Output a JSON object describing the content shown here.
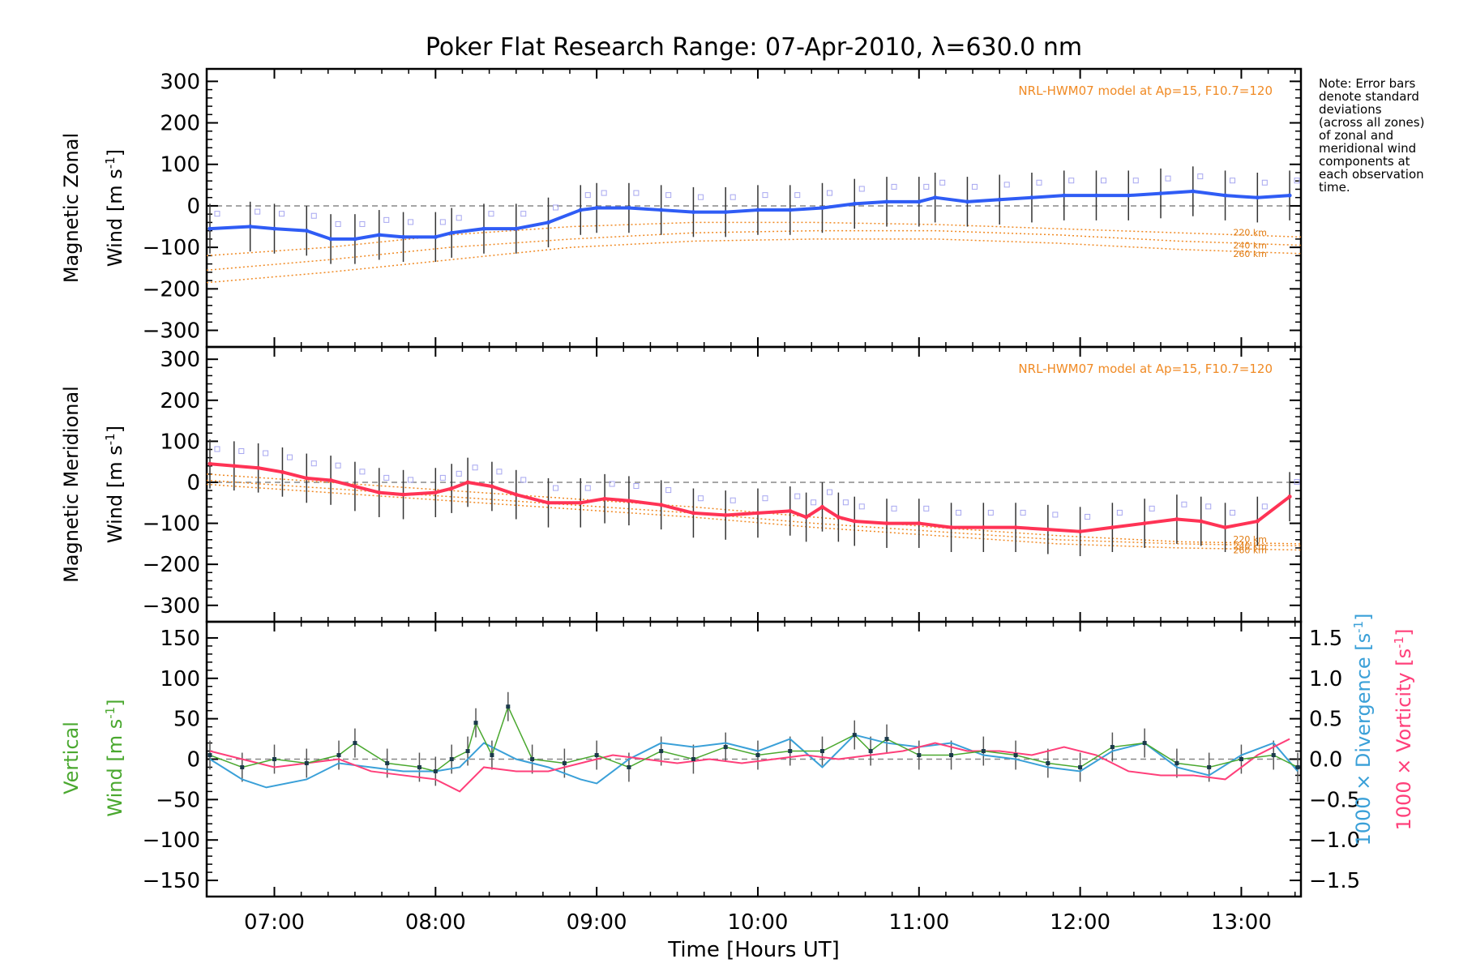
{
  "chart_data": {
    "type": "line",
    "title": "Poker Flat Research Range: 07-Apr-2010, λ=630.0 nm",
    "xlabel": "Time [Hours UT]",
    "x_ticks": [
      "07:00",
      "08:00",
      "09:00",
      "10:00",
      "11:00",
      "12:00",
      "13:00"
    ],
    "x_tick_values": [
      7,
      8,
      9,
      10,
      11,
      12,
      13
    ],
    "xlim": [
      6.58,
      13.37
    ],
    "note": [
      "Note: Error bars",
      "denote standard",
      "deviations",
      "(across all zones)",
      "of zonal and",
      "meridional wind",
      "components at",
      "each observation",
      "time."
    ],
    "colors": {
      "zonal": "#2f5cf5",
      "meridional": "#ff3355",
      "vertical": "#4aa82f",
      "divergence": "#3aa0d8",
      "vorticity": "#ff3f7a",
      "model": "#f08a24",
      "grid": "#888888"
    },
    "panels": [
      {
        "id": "zonal",
        "ylabel_line1": "Magnetic Zonal",
        "ylabel_unit": "Wind [m s",
        "ylabel_sup": "-1",
        "ylabel_close": "]",
        "ylim": [
          -340,
          330
        ],
        "y_ticks": [
          "300",
          "200",
          "100",
          "0",
          "−100",
          "−200",
          "−300"
        ],
        "y_tick_values": [
          300,
          200,
          100,
          0,
          -100,
          -200,
          -300
        ],
        "model_label": "NRL-HWM07 model at Ap=15, F10.7=120",
        "model_alts": [
          "220 km",
          "240 km",
          "260 km"
        ],
        "series_name": "Zonal wind",
        "x": [
          6.6,
          6.85,
          7.0,
          7.2,
          7.35,
          7.5,
          7.65,
          7.8,
          8.0,
          8.1,
          8.3,
          8.5,
          8.7,
          8.9,
          9.0,
          9.2,
          9.4,
          9.6,
          9.8,
          10.0,
          10.2,
          10.4,
          10.6,
          10.8,
          11.0,
          11.1,
          11.3,
          11.5,
          11.7,
          11.9,
          12.1,
          12.3,
          12.5,
          12.7,
          12.9,
          13.1,
          13.3
        ],
        "values": [
          -55,
          -50,
          -55,
          -60,
          -80,
          -80,
          -70,
          -75,
          -75,
          -65,
          -55,
          -55,
          -40,
          -10,
          -5,
          -5,
          -10,
          -15,
          -15,
          -10,
          -10,
          -5,
          5,
          10,
          10,
          20,
          10,
          15,
          20,
          25,
          25,
          25,
          30,
          35,
          25,
          20,
          25
        ],
        "error_half": 60,
        "model_series": [
          {
            "name": "220 km",
            "values": [
              -120,
              -100,
              -70,
              -50,
              -40,
              -40,
              -45,
              -55,
              -65,
              -75
            ]
          },
          {
            "name": "240 km",
            "values": [
              -155,
              -130,
              -100,
              -80,
              -65,
              -60,
              -60,
              -70,
              -85,
              -95
            ]
          },
          {
            "name": "260 km",
            "values": [
              -185,
              -160,
              -130,
              -100,
              -85,
              -80,
              -80,
              -90,
              -105,
              -115
            ]
          }
        ]
      },
      {
        "id": "meridional",
        "ylabel_line1": "Magnetic Meridional",
        "ylabel_unit": "Wind [m s",
        "ylabel_sup": "-1",
        "ylabel_close": "]",
        "ylim": [
          -340,
          330
        ],
        "y_ticks": [
          "300",
          "200",
          "100",
          "0",
          "−100",
          "−200",
          "−300"
        ],
        "y_tick_values": [
          300,
          200,
          100,
          0,
          -100,
          -200,
          -300
        ],
        "model_label": "NRL-HWM07 model at Ap=15, F10.7=120",
        "model_alts": [
          "220 km",
          "240 km",
          "260 km"
        ],
        "series_name": "Meridional wind",
        "x": [
          6.6,
          6.75,
          6.9,
          7.05,
          7.2,
          7.35,
          7.5,
          7.65,
          7.8,
          8.0,
          8.1,
          8.2,
          8.35,
          8.5,
          8.7,
          8.9,
          9.05,
          9.2,
          9.4,
          9.6,
          9.8,
          10.0,
          10.2,
          10.3,
          10.4,
          10.5,
          10.6,
          10.8,
          11.0,
          11.2,
          11.4,
          11.6,
          11.8,
          12.0,
          12.2,
          12.4,
          12.6,
          12.75,
          12.9,
          13.1,
          13.3
        ],
        "values": [
          45,
          40,
          35,
          25,
          10,
          5,
          -10,
          -25,
          -30,
          -25,
          -15,
          0,
          -10,
          -30,
          -50,
          -50,
          -40,
          -45,
          -55,
          -75,
          -80,
          -75,
          -70,
          -85,
          -60,
          -85,
          -95,
          -100,
          -100,
          -110,
          -110,
          -110,
          -115,
          -120,
          -110,
          -100,
          -90,
          -95,
          -110,
          -95,
          -35
        ],
        "error_half": 60,
        "model_series": [
          {
            "name": "220 km",
            "values": [
              20,
              0,
              -20,
              -40,
              -60,
              -85,
              -110,
              -130,
              -145,
              -150
            ]
          },
          {
            "name": "240 km",
            "values": [
              5,
              -15,
              -35,
              -55,
              -75,
              -100,
              -120,
              -140,
              -150,
              -155
            ]
          },
          {
            "name": "260 km",
            "values": [
              -5,
              -25,
              -45,
              -65,
              -85,
              -110,
              -130,
              -150,
              -160,
              -165
            ]
          }
        ]
      },
      {
        "id": "vertical",
        "ylabel_line1": "Vertical",
        "ylabel_unit": "Wind [m s",
        "ylabel_sup": "-1",
        "ylabel_close": "]",
        "ylim": [
          -170,
          170
        ],
        "y_ticks": [
          "150",
          "100",
          "50",
          "0",
          "−50",
          "−100",
          "−150"
        ],
        "y_tick_values": [
          150,
          100,
          50,
          0,
          -50,
          -100,
          -150
        ],
        "right_ticks": [
          "1.5",
          "1.0",
          "0.5",
          "0.0",
          "−0.5",
          "−1.0",
          "−1.5"
        ],
        "right_tick_values": [
          1.5,
          1.0,
          0.5,
          0.0,
          -0.5,
          -1.0,
          -1.5
        ],
        "right_label_div": "1000 × Divergence [s",
        "right_label_vort": "1000 × Vorticity [s",
        "right_label_sup": "-1",
        "right_label_close": "]",
        "series": [
          {
            "name": "Vertical wind",
            "x": [
              6.6,
              6.8,
              7.0,
              7.2,
              7.4,
              7.5,
              7.7,
              7.9,
              8.0,
              8.1,
              8.2,
              8.25,
              8.35,
              8.45,
              8.6,
              8.8,
              9.0,
              9.2,
              9.4,
              9.6,
              9.8,
              10.0,
              10.2,
              10.4,
              10.6,
              10.7,
              10.8,
              11.0,
              11.2,
              11.4,
              11.6,
              11.8,
              12.0,
              12.2,
              12.4,
              12.6,
              12.8,
              13.0,
              13.2,
              13.35
            ],
            "values": [
              5,
              -10,
              0,
              -5,
              5,
              20,
              -5,
              -10,
              -15,
              0,
              10,
              45,
              5,
              65,
              0,
              -5,
              5,
              -10,
              10,
              0,
              15,
              5,
              10,
              10,
              30,
              10,
              25,
              5,
              5,
              10,
              5,
              -5,
              -10,
              15,
              20,
              -5,
              -10,
              0,
              5,
              -10
            ]
          },
          {
            "name": "1000 × Divergence",
            "x": [
              6.6,
              6.8,
              6.95,
              7.2,
              7.4,
              7.6,
              7.8,
              8.0,
              8.15,
              8.3,
              8.5,
              8.7,
              8.9,
              9.0,
              9.2,
              9.4,
              9.6,
              9.8,
              10.0,
              10.2,
              10.4,
              10.6,
              10.8,
              11.0,
              11.2,
              11.4,
              11.6,
              11.8,
              12.0,
              12.2,
              12.4,
              12.6,
              12.8,
              13.0,
              13.2,
              13.35
            ],
            "values": [
              0.0,
              -0.25,
              -0.35,
              -0.25,
              -0.05,
              -0.1,
              -0.15,
              -0.15,
              -0.1,
              0.2,
              0.0,
              -0.1,
              -0.25,
              -0.3,
              0.0,
              0.2,
              0.15,
              0.2,
              0.1,
              0.25,
              -0.1,
              0.3,
              0.2,
              0.15,
              0.2,
              0.05,
              0.0,
              -0.1,
              -0.15,
              0.1,
              0.2,
              -0.1,
              -0.2,
              0.05,
              0.2,
              -0.15
            ]
          },
          {
            "name": "1000 × Vorticity",
            "x": [
              6.6,
              6.8,
              7.0,
              7.2,
              7.4,
              7.6,
              7.8,
              8.0,
              8.15,
              8.3,
              8.5,
              8.7,
              8.9,
              9.1,
              9.3,
              9.5,
              9.7,
              9.9,
              10.1,
              10.3,
              10.5,
              10.7,
              10.9,
              11.1,
              11.3,
              11.5,
              11.7,
              11.9,
              12.1,
              12.3,
              12.5,
              12.7,
              12.9,
              13.1,
              13.3
            ],
            "values": [
              0.1,
              0.0,
              -0.1,
              -0.05,
              0.0,
              -0.15,
              -0.2,
              -0.25,
              -0.4,
              -0.1,
              -0.15,
              -0.15,
              -0.05,
              0.05,
              0.0,
              -0.05,
              0.0,
              -0.05,
              0.0,
              0.05,
              0.0,
              0.05,
              0.1,
              0.2,
              0.1,
              0.1,
              0.05,
              0.15,
              0.05,
              -0.15,
              -0.2,
              -0.2,
              -0.25,
              0.05,
              0.25
            ]
          }
        ],
        "error_half": 18
      }
    ]
  }
}
